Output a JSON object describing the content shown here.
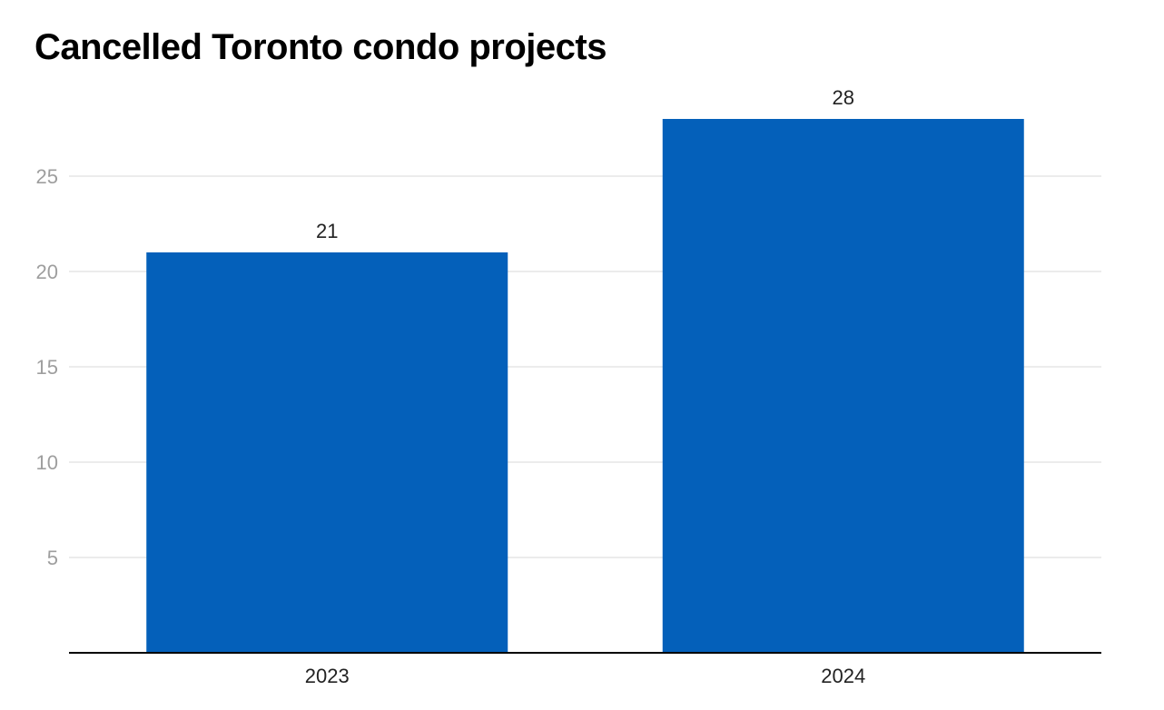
{
  "chart_data": {
    "type": "bar",
    "title": "Cancelled Toronto condo projects",
    "categories": [
      "2023",
      "2024"
    ],
    "values": [
      21,
      28
    ],
    "data_labels": [
      "21",
      "28"
    ],
    "y_ticks": [
      5,
      10,
      15,
      20,
      25
    ],
    "y_tick_labels": [
      "5",
      "10",
      "15",
      "20",
      "25"
    ],
    "ylim": [
      0,
      28
    ],
    "xlabel": "",
    "ylabel": "",
    "grid": true,
    "bar_color": "#0460BA",
    "grid_color": "#E6E6E6",
    "axis_color": "#000000",
    "tick_label_color": "#9E9E9E"
  }
}
